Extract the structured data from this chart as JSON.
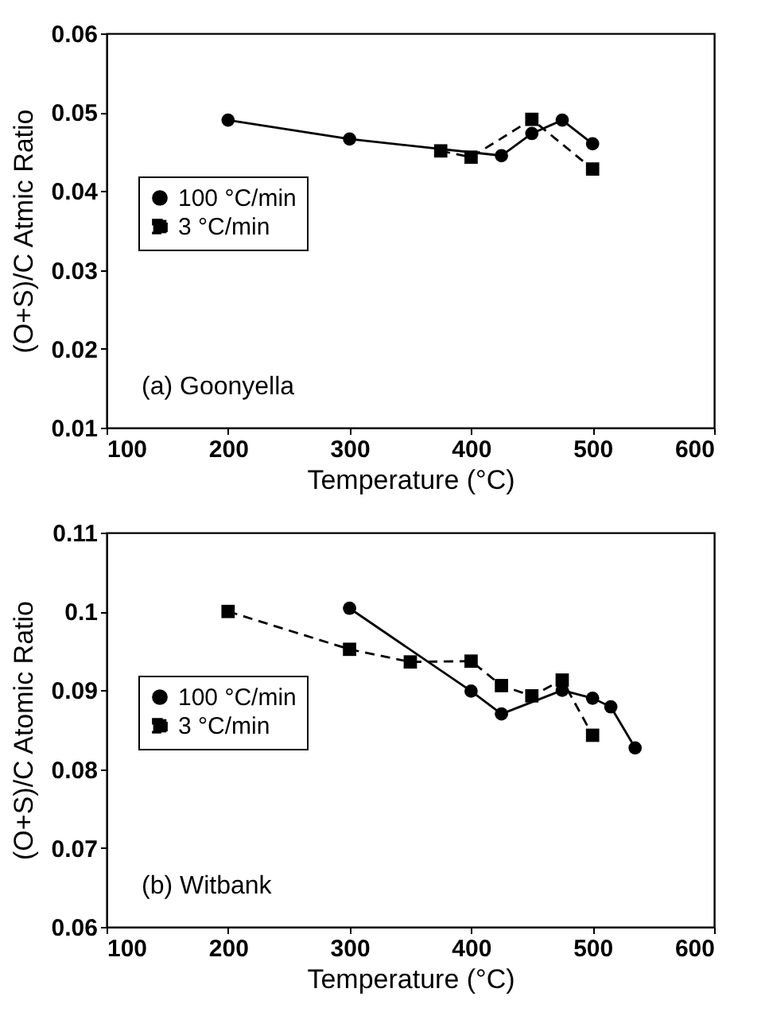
{
  "chart_data": [
    {
      "type": "line",
      "xlabel": "Temperature (°C)",
      "ylabel": "(O+S)/C Atmic Ratio",
      "annotations": [
        "(a) Goonyella"
      ],
      "xlim": [
        100,
        600
      ],
      "xticks": [
        100,
        200,
        300,
        400,
        500,
        600
      ],
      "ylim": [
        0.01,
        0.06
      ],
      "yticks": [
        0.01,
        0.02,
        0.03,
        0.04,
        0.05,
        0.06
      ],
      "grid": false,
      "legend": "left",
      "series": [
        {
          "name": "100 °C/min",
          "color": "#000000",
          "marker": "circle",
          "line_style": "solid",
          "x": [
            200,
            300,
            425,
            450,
            475,
            500
          ],
          "values": [
            0.049,
            0.0466,
            0.0445,
            0.0473,
            0.049,
            0.046
          ]
        },
        {
          "name": "3 °C/min",
          "color": "#000000",
          "marker": "square",
          "line_style": "dashed",
          "x": [
            375,
            400,
            450,
            500
          ],
          "values": [
            0.0451,
            0.0443,
            0.0491,
            0.0428
          ]
        }
      ]
    },
    {
      "type": "line",
      "xlabel": "Temperature (°C)",
      "ylabel": "(O+S)/C Atomic Ratio",
      "annotations": [
        "(b) Witbank"
      ],
      "xlim": [
        100,
        600
      ],
      "xticks": [
        100,
        200,
        300,
        400,
        500,
        600
      ],
      "ylim": [
        0.06,
        0.11
      ],
      "yticks": [
        0.06,
        0.07,
        0.08,
        0.09,
        0.1,
        0.11
      ],
      "grid": false,
      "legend": "left",
      "series": [
        {
          "name": "100 °C/min",
          "color": "#000000",
          "marker": "circle",
          "line_style": "solid",
          "x": [
            300,
            400,
            425,
            475,
            500,
            515,
            535
          ],
          "values": [
            0.1004,
            0.0899,
            0.087,
            0.09,
            0.089,
            0.0879,
            0.0827
          ]
        },
        {
          "name": "3 °C/min",
          "color": "#000000",
          "marker": "square",
          "line_style": "dashed",
          "x": [
            200,
            300,
            350,
            400,
            425,
            450,
            475,
            500
          ],
          "values": [
            0.1,
            0.0952,
            0.0936,
            0.0937,
            0.0906,
            0.0893,
            0.0913,
            0.0843
          ]
        }
      ]
    }
  ]
}
